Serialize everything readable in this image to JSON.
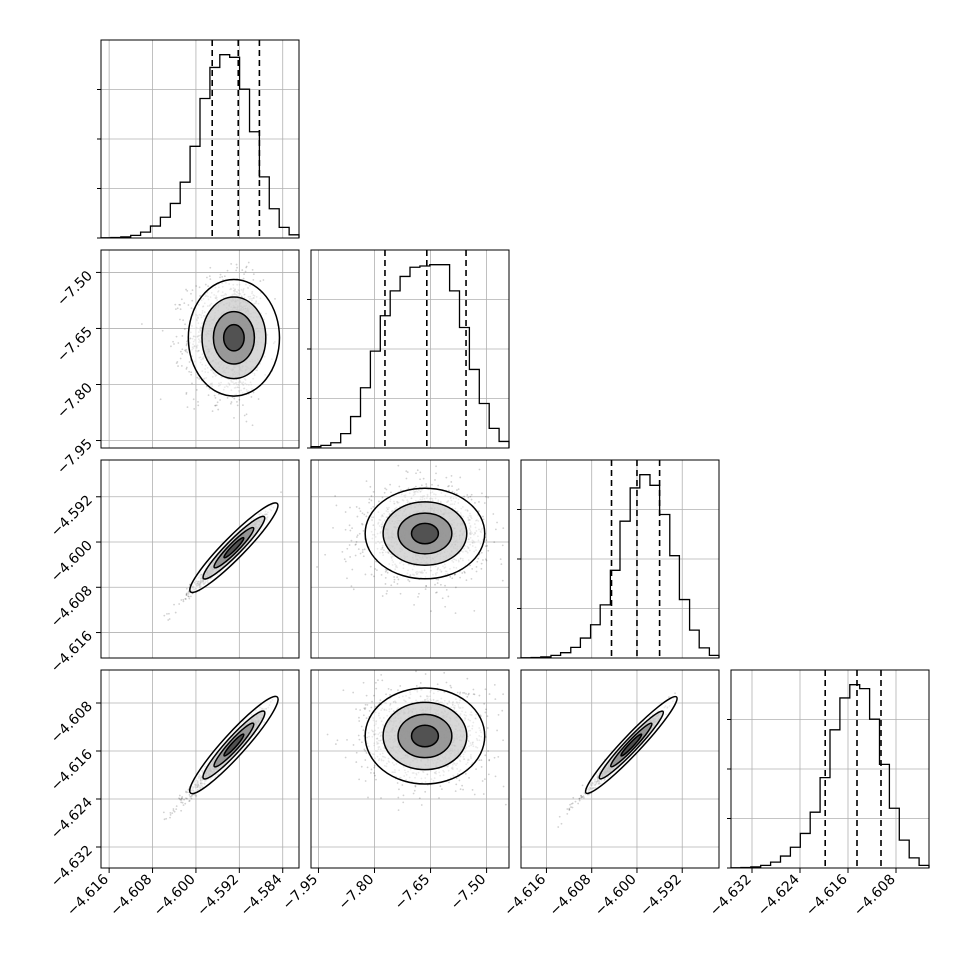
{
  "chart_data": {
    "type": "corner",
    "title": "",
    "grid": true,
    "colors": {
      "line": "#000000",
      "density": "#000000",
      "grid": "#b0b0b0",
      "background": "#ffffff"
    },
    "quantiles": [
      0.16,
      0.5,
      0.84
    ],
    "parameters": [
      {
        "label": "",
        "range": [
          -4.6175,
          -4.581
        ],
        "ticks": [
          -4.616,
          -4.608,
          -4.6,
          -4.592,
          -4.584
        ],
        "tick_labels": [
          "−4.616",
          "−4.608",
          "−4.600",
          "−4.592",
          "−4.584"
        ],
        "quantile_values": [
          -4.597,
          -4.5922,
          -4.5883
        ],
        "hist_edges": [
          -4.6175,
          -4.61568,
          -4.61385,
          -4.61202,
          -4.6102,
          -4.60838,
          -4.60655,
          -4.60472,
          -4.6029,
          -4.60108,
          -4.59925,
          -4.59742,
          -4.5956,
          -4.59378,
          -4.59195,
          -4.59012,
          -4.5883,
          -4.58648,
          -4.58465,
          -4.58282,
          -4.581
        ],
        "hist_counts": [
          1,
          2,
          4,
          10,
          22,
          45,
          78,
          130,
          210,
          345,
          525,
          642,
          690,
          680,
          560,
          400,
          230,
          110,
          40,
          12
        ]
      },
      {
        "label": "",
        "range": [
          -7.97,
          -7.44
        ],
        "ticks": [
          -7.95,
          -7.8,
          -7.65,
          -7.5
        ],
        "tick_labels": [
          "−7.95",
          "−7.80",
          "−7.65",
          "−7.50"
        ],
        "quantile_values": [
          -7.772,
          -7.66,
          -7.555
        ],
        "hist_edges": [
          -7.97,
          -7.9435,
          -7.917,
          -7.8905,
          -7.864,
          -7.8375,
          -7.811,
          -7.7845,
          -7.758,
          -7.7315,
          -7.705,
          -7.6785,
          -7.652,
          -7.6255,
          -7.599,
          -7.5725,
          -7.546,
          -7.5195,
          -7.493,
          -7.4665,
          -7.44
        ],
        "hist_counts": [
          5,
          10,
          20,
          55,
          120,
          230,
          370,
          505,
          600,
          655,
          690,
          695,
          700,
          700,
          600,
          460,
          300,
          170,
          75,
          25
        ]
      },
      {
        "label": "",
        "range": [
          -4.6205,
          -4.5855
        ],
        "ticks": [
          -4.616,
          -4.608,
          -4.6,
          -4.592
        ],
        "tick_labels": [
          "−4.616",
          "−4.608",
          "−4.600",
          "−4.592"
        ],
        "quantile_values": [
          -4.6045,
          -4.6,
          -4.596
        ],
        "hist_edges": [
          -4.6205,
          -4.6187,
          -4.617,
          -4.6152,
          -4.6135,
          -4.6117,
          -4.61,
          -4.6082,
          -4.6065,
          -4.6047,
          -4.603,
          -4.6012,
          -4.5995,
          -4.5977,
          -4.596,
          -4.5942,
          -4.5925,
          -4.5907,
          -4.589,
          -4.5872,
          -4.5855
        ],
        "hist_counts": [
          1,
          2,
          4,
          10,
          20,
          40,
          75,
          125,
          200,
          330,
          515,
          640,
          690,
          650,
          540,
          385,
          220,
          105,
          38,
          10
        ]
      },
      {
        "label": "",
        "range": [
          -4.6355,
          -4.6025
        ],
        "ticks": [
          -4.632,
          -4.624,
          -4.616,
          -4.608
        ],
        "tick_labels": [
          "−4.632",
          "−4.624",
          "−4.616",
          "−4.608"
        ],
        "quantile_values": [
          -4.6198,
          -4.6145,
          -4.6105
        ],
        "hist_edges": [
          -4.6355,
          -4.63385,
          -4.6322,
          -4.63055,
          -4.6289,
          -4.62725,
          -4.6256,
          -4.62395,
          -4.6223,
          -4.62065,
          -4.619,
          -4.61735,
          -4.6157,
          -4.61405,
          -4.6124,
          -4.61075,
          -4.6091,
          -4.60745,
          -4.6058,
          -4.60415,
          -4.6025
        ],
        "hist_counts": [
          1,
          2,
          4,
          10,
          22,
          45,
          78,
          130,
          210,
          340,
          520,
          640,
          690,
          675,
          560,
          390,
          225,
          105,
          38,
          10
        ]
      }
    ],
    "pairs": [
      {
        "row": 1,
        "col": 0,
        "mean": [
          -4.593,
          -7.675
        ],
        "sd": [
          0.0042,
          0.078
        ],
        "corr": 0.0,
        "skew": [
          -1,
          1
        ]
      },
      {
        "row": 2,
        "col": 0,
        "mean": [
          -4.593,
          -4.601
        ],
        "sd": [
          0.004,
          0.0039
        ],
        "corr": 0.985,
        "skew": [
          -1,
          -1
        ]
      },
      {
        "row": 2,
        "col": 1,
        "mean": [
          -7.665,
          -4.5985
        ],
        "sd": [
          0.08,
          0.004
        ],
        "corr": 0.0,
        "skew": [
          0,
          -1
        ]
      },
      {
        "row": 3,
        "col": 0,
        "mean": [
          -4.593,
          -4.615
        ],
        "sd": [
          0.004,
          0.004
        ],
        "corr": 0.985,
        "skew": [
          -1,
          -1
        ]
      },
      {
        "row": 3,
        "col": 1,
        "mean": [
          -7.665,
          -4.6135
        ],
        "sd": [
          0.08,
          0.004
        ],
        "corr": 0.0,
        "skew": [
          0,
          -1
        ]
      },
      {
        "row": 3,
        "col": 2,
        "mean": [
          -4.601,
          -4.615
        ],
        "sd": [
          0.004,
          0.004
        ],
        "corr": 0.99,
        "skew": [
          -1,
          -1
        ]
      }
    ]
  }
}
